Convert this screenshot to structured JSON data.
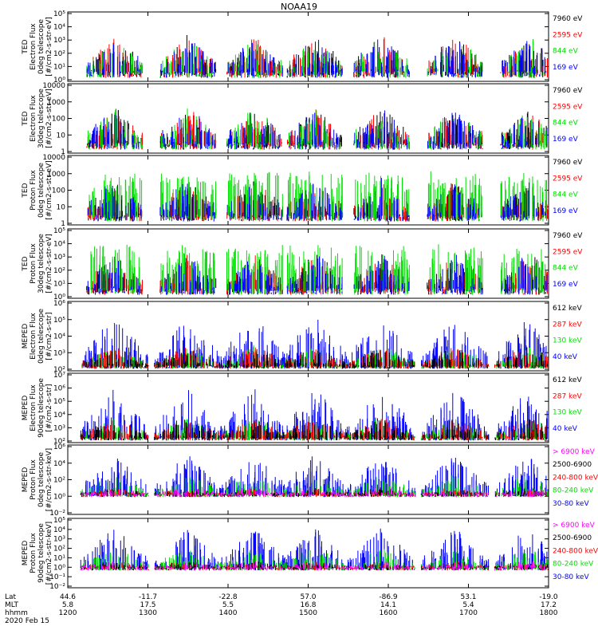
{
  "title": "NOAA19",
  "colors": {
    "black": "#000000",
    "red": "#ff0000",
    "green": "#00e000",
    "blue": "#0000ff",
    "magenta": "#ff00ff",
    "grid": "#000000"
  },
  "chart_data": {
    "type": "scatter",
    "title": "NOAA19",
    "x_range_hhmm": [
      "1200",
      "1800"
    ],
    "x_ticks": [
      "1200",
      "1300",
      "1400",
      "1500",
      "1600",
      "1700",
      "1800"
    ],
    "lat": [
      "44.6",
      "-11.7",
      "-22.8",
      "57.0",
      "-86.9",
      "53.1",
      "-19.0"
    ],
    "mlt": [
      "5.8",
      "17.5",
      "5.5",
      "16.8",
      "14.1",
      "5.4",
      "17.2"
    ],
    "footer_labels": {
      "lat": "Lat",
      "mlt": "MLT",
      "hhmm": "hhmm",
      "date": "2020 Feb 15"
    },
    "panels": [
      {
        "ylabel": [
          "TED",
          "Electron Flux",
          "0deg telescope",
          "[#/cm2-s-str-eV]"
        ],
        "yticks": [
          "10⁰",
          "10¹",
          "10²",
          "10³",
          "10⁴",
          "10⁵"
        ],
        "legend": [
          {
            "text": "7960 eV",
            "color": "#000000"
          },
          {
            "text": "2595 eV",
            "color": "#ff0000"
          },
          {
            "text": "844 eV",
            "color": "#00e000"
          },
          {
            "text": "169 eV",
            "color": "#0000ff"
          }
        ]
      },
      {
        "ylabel": [
          "TED",
          "Electron Flux",
          "30deg telescope",
          "[#/cm2-s-str-eV]"
        ],
        "yticks": [
          "1",
          "10",
          "100",
          "1000",
          "10000"
        ],
        "legend": [
          {
            "text": "7960 eV",
            "color": "#000000"
          },
          {
            "text": "2595 eV",
            "color": "#ff0000"
          },
          {
            "text": "844 eV",
            "color": "#00e000"
          },
          {
            "text": "169 eV",
            "color": "#0000ff"
          }
        ]
      },
      {
        "ylabel": [
          "TED",
          "Proton Flux",
          "0deg telescope",
          "[#/cm2-s-str-eV]"
        ],
        "yticks": [
          "1",
          "10",
          "100",
          "1000",
          "10000"
        ],
        "legend": [
          {
            "text": "7960 eV",
            "color": "#000000"
          },
          {
            "text": "2595 eV",
            "color": "#ff0000"
          },
          {
            "text": "844 eV",
            "color": "#00e000"
          },
          {
            "text": "169 eV",
            "color": "#0000ff"
          }
        ]
      },
      {
        "ylabel": [
          "TED",
          "Proton Flux",
          "30deg telescope",
          "[#/cm2-s-str-eV]"
        ],
        "yticks": [
          "10⁰",
          "10¹",
          "10²",
          "10³",
          "10⁴",
          "10⁵"
        ],
        "legend": [
          {
            "text": "7960 eV",
            "color": "#000000"
          },
          {
            "text": "2595 eV",
            "color": "#ff0000"
          },
          {
            "text": "844 eV",
            "color": "#00e000"
          },
          {
            "text": "169 eV",
            "color": "#0000ff"
          }
        ]
      },
      {
        "ylabel": [
          "MEPED",
          "Electron Flux",
          "0deg telescope",
          "[#/cm2-s-str]"
        ],
        "yticks": [
          "10²",
          "10³",
          "10⁴",
          "10⁵",
          "10⁶"
        ],
        "legend": [
          {
            "text": "612 keV",
            "color": "#000000"
          },
          {
            "text": "287 keV",
            "color": "#ff0000"
          },
          {
            "text": "130 keV",
            "color": "#00e000"
          },
          {
            "text": "40 keV",
            "color": "#0000ff"
          }
        ]
      },
      {
        "ylabel": [
          "MEPED",
          "Electron Flux",
          "90deg telescope",
          "[#/cm2-s-str]"
        ],
        "yticks": [
          "10²",
          "10³",
          "10⁴",
          "10⁵",
          "10⁶",
          "10⁷"
        ],
        "legend": [
          {
            "text": "612 keV",
            "color": "#000000"
          },
          {
            "text": "287 keV",
            "color": "#ff0000"
          },
          {
            "text": "130 keV",
            "color": "#00e000"
          },
          {
            "text": "40 keV",
            "color": "#0000ff"
          }
        ]
      },
      {
        "ylabel": [
          "MEPED",
          "Proton Flux",
          "0deg telescope",
          "[#/cm2-s-str-keV]"
        ],
        "yticks": [
          "10⁻²",
          "10⁰",
          "10²",
          "10⁴",
          "10⁶"
        ],
        "legend": [
          {
            "text": "> 6900 keV",
            "color": "#ff00ff"
          },
          {
            "text": "2500-6900",
            "color": "#000000"
          },
          {
            "text": "240-800 keV",
            "color": "#ff0000"
          },
          {
            "text": "80-240 keV",
            "color": "#00e000"
          },
          {
            "text": "30-80 keV",
            "color": "#0000ff"
          }
        ]
      },
      {
        "ylabel": [
          "MEPED",
          "Proton Flux",
          "90deg telescope",
          "[#/cm2-s-str-keV]"
        ],
        "yticks": [
          "10⁻²",
          "10⁻¹",
          "10⁰",
          "10¹",
          "10²",
          "10³",
          "10⁴",
          "10⁵"
        ],
        "legend": [
          {
            "text": "> 6900 keV",
            "color": "#ff00ff"
          },
          {
            "text": "2500-6900",
            "color": "#000000"
          },
          {
            "text": "240-800 keV",
            "color": "#ff0000"
          },
          {
            "text": "80-240 keV",
            "color": "#00e000"
          },
          {
            "text": "30-80 keV",
            "color": "#0000ff"
          }
        ]
      }
    ],
    "pass_centers_hhmm": [
      "1235",
      "1330",
      "1420",
      "1505",
      "1555",
      "1650",
      "1745"
    ]
  }
}
